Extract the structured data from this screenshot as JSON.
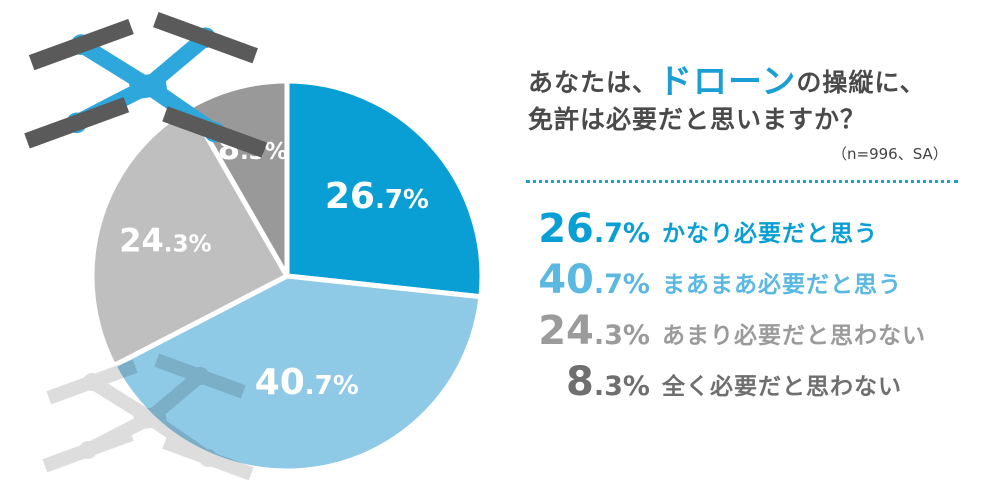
{
  "question": {
    "line1_before": "あなたは、",
    "line1_highlight": "ドローン",
    "line1_after": "の操縦に、",
    "line2": "免許は必要だと思いますか？",
    "sample": "（n=996、SA）"
  },
  "colors": {
    "series1": "#0a9fd4",
    "series2": "#8ec9e6",
    "series3": "#bfbfbf",
    "series4": "#999999",
    "label1": "#0a9fd4",
    "label2": "#5bb8e0",
    "label3": "#9b9b9b",
    "label4": "#6f6f6f",
    "drone_frame": "#2ea8dc",
    "drone_arm": "#5a5a5a"
  },
  "icons": [
    "drone-icon",
    "drone-shadow-icon"
  ],
  "chart_data": {
    "type": "pie",
    "start_angle_deg": 0,
    "direction": "clockwise",
    "slices": [
      {
        "label": "かなり必要だと思う",
        "value": 26.7,
        "int": "26",
        "dec": ".7%"
      },
      {
        "label": "まあまあ必要だと思う",
        "value": 40.7,
        "int": "40",
        "dec": ".7%"
      },
      {
        "label": "あまり必要だと思わない",
        "value": 24.3,
        "int": "24",
        "dec": ".3%"
      },
      {
        "label": "全く必要だと思わない",
        "value": 8.3,
        "int": "8",
        "dec": ".3%"
      }
    ],
    "legend": "right"
  }
}
